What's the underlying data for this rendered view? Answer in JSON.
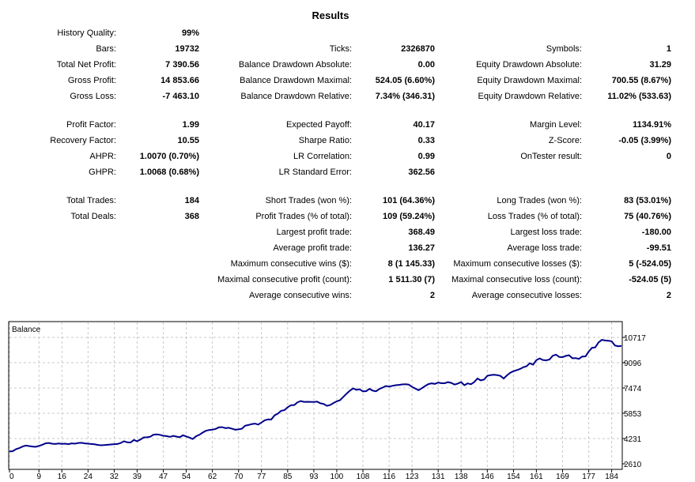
{
  "title": "Results",
  "history_quality": {
    "label": "History Quality:",
    "value": "99%"
  },
  "rows": [
    [
      {
        "label": "Bars:",
        "value": "19732"
      },
      {
        "label": "Ticks:",
        "value": "2326870"
      },
      {
        "label": "Symbols:",
        "value": "1"
      }
    ],
    [
      {
        "label": "Total Net Profit:",
        "value": "7 390.56"
      },
      {
        "label": "Balance Drawdown Absolute:",
        "value": "0.00"
      },
      {
        "label": "Equity Drawdown Absolute:",
        "value": "31.29"
      }
    ],
    [
      {
        "label": "Gross Profit:",
        "value": "14 853.66"
      },
      {
        "label": "Balance Drawdown Maximal:",
        "value": "524.05 (6.60%)"
      },
      {
        "label": "Equity Drawdown Maximal:",
        "value": "700.55 (8.67%)"
      }
    ],
    [
      {
        "label": "Gross Loss:",
        "value": "-7 463.10"
      },
      {
        "label": "Balance Drawdown Relative:",
        "value": "7.34% (346.31)"
      },
      {
        "label": "Equity Drawdown Relative:",
        "value": "11.02% (533.63)"
      }
    ],
    [
      {
        "label": "Profit Factor:",
        "value": "1.99"
      },
      {
        "label": "Expected Payoff:",
        "value": "40.17"
      },
      {
        "label": "Margin Level:",
        "value": "1134.91%"
      }
    ],
    [
      {
        "label": "Recovery Factor:",
        "value": "10.55"
      },
      {
        "label": "Sharpe Ratio:",
        "value": "0.33"
      },
      {
        "label": "Z-Score:",
        "value": "-0.05 (3.99%)"
      }
    ],
    [
      {
        "label": "AHPR:",
        "value": "1.0070 (0.70%)"
      },
      {
        "label": "LR Correlation:",
        "value": "0.99"
      },
      {
        "label": "OnTester result:",
        "value": "0"
      }
    ],
    [
      {
        "label": "GHPR:",
        "value": "1.0068 (0.68%)"
      },
      {
        "label": "LR Standard Error:",
        "value": "362.56"
      },
      {
        "label": "",
        "value": ""
      }
    ],
    [
      {
        "label": "Total Trades:",
        "value": "184"
      },
      {
        "label": "Short Trades (won %):",
        "value": "101 (64.36%)"
      },
      {
        "label": "Long Trades (won %):",
        "value": "83 (53.01%)"
      }
    ],
    [
      {
        "label": "Total Deals:",
        "value": "368"
      },
      {
        "label": "Profit Trades (% of total):",
        "value": "109 (59.24%)"
      },
      {
        "label": "Loss Trades (% of total):",
        "value": "75 (40.76%)"
      }
    ],
    [
      {
        "label": "",
        "value": ""
      },
      {
        "label": "Largest profit trade:",
        "value": "368.49"
      },
      {
        "label": "Largest loss trade:",
        "value": "-180.00"
      }
    ],
    [
      {
        "label": "",
        "value": ""
      },
      {
        "label": "Average profit trade:",
        "value": "136.27"
      },
      {
        "label": "Average loss trade:",
        "value": "-99.51"
      }
    ],
    [
      {
        "label": "",
        "value": ""
      },
      {
        "label": "Maximum consecutive wins ($):",
        "value": "8 (1 145.33)"
      },
      {
        "label": "Maximum consecutive losses ($):",
        "value": "5 (-524.05)"
      }
    ],
    [
      {
        "label": "",
        "value": ""
      },
      {
        "label": "Maximal consecutive profit (count):",
        "value": "1 511.30 (7)"
      },
      {
        "label": "Maximal consecutive loss (count):",
        "value": "-524.05 (5)"
      }
    ],
    [
      {
        "label": "",
        "value": ""
      },
      {
        "label": "Average consecutive wins:",
        "value": "2"
      },
      {
        "label": "Average consecutive losses:",
        "value": "2"
      }
    ]
  ],
  "chart_data": {
    "type": "line",
    "title": "Balance",
    "x_ticks": [
      "0",
      "9",
      "16",
      "24",
      "32",
      "39",
      "47",
      "54",
      "62",
      "70",
      "77",
      "85",
      "93",
      "100",
      "108",
      "116",
      "123",
      "131",
      "138",
      "146",
      "154",
      "161",
      "169",
      "177",
      "184"
    ],
    "y_ticks": [
      "10717",
      "9096",
      "7474",
      "5853",
      "4231",
      "2610"
    ],
    "ylim": [
      2610,
      10717
    ],
    "xlim": [
      0,
      187
    ],
    "grid": true,
    "line_color": "#00008b",
    "series": [
      {
        "x": [
          0,
          1,
          2,
          3,
          4,
          5,
          6,
          7,
          8,
          9,
          10,
          11,
          12,
          13,
          14,
          15,
          16,
          17,
          18,
          19,
          20,
          21,
          22,
          23,
          24,
          25,
          26,
          27,
          28,
          29,
          30,
          31,
          32,
          33,
          34,
          35,
          36,
          37,
          38,
          39,
          40,
          41,
          42,
          43,
          44,
          45,
          46,
          47,
          48,
          49,
          50,
          51,
          52,
          53,
          54,
          55,
          56,
          57,
          58,
          59,
          60,
          61,
          62,
          63,
          64,
          65,
          66,
          67,
          68,
          69,
          70,
          71,
          72,
          73,
          74,
          75,
          76,
          77,
          78,
          79,
          80,
          81,
          82,
          83,
          84,
          85,
          86,
          87,
          88,
          89,
          90,
          91,
          92,
          93,
          94,
          95,
          96,
          97,
          98,
          99,
          100,
          101,
          102,
          103,
          104,
          105,
          106,
          107,
          108,
          109,
          110,
          111,
          112,
          113,
          114,
          115,
          116,
          117,
          118,
          119,
          120,
          121,
          122,
          123,
          124,
          125,
          126,
          127,
          128,
          129,
          130,
          131,
          132,
          133,
          134,
          135,
          136,
          137,
          138,
          139,
          140,
          141,
          142,
          143,
          144,
          145,
          146,
          147,
          148,
          149,
          150,
          151,
          152,
          153,
          154,
          155,
          156,
          157,
          158,
          159,
          160,
          161,
          162,
          163,
          164,
          165,
          166,
          167,
          168,
          169,
          170,
          171,
          172,
          173,
          174,
          175,
          176,
          177,
          178,
          179,
          180,
          181,
          182,
          183,
          184,
          185,
          186,
          187
        ],
        "values": [
          3400,
          3420,
          3550,
          3620,
          3720,
          3780,
          3750,
          3720,
          3700,
          3760,
          3830,
          3920,
          3950,
          3900,
          3880,
          3910,
          3890,
          3900,
          3870,
          3920,
          3900,
          3950,
          3960,
          3920,
          3900,
          3880,
          3860,
          3820,
          3800,
          3810,
          3830,
          3850,
          3870,
          3880,
          3950,
          4060,
          3990,
          3980,
          4140,
          4060,
          4170,
          4300,
          4310,
          4350,
          4480,
          4500,
          4470,
          4410,
          4390,
          4340,
          4400,
          4360,
          4310,
          4440,
          4370,
          4290,
          4200,
          4380,
          4470,
          4610,
          4730,
          4780,
          4800,
          4850,
          4950,
          4960,
          4900,
          4920,
          4860,
          4800,
          4820,
          4860,
          5050,
          5100,
          5160,
          5190,
          5130,
          5260,
          5400,
          5460,
          5450,
          5720,
          5820,
          6010,
          6050,
          6240,
          6370,
          6380,
          6550,
          6640,
          6580,
          6590,
          6580,
          6570,
          6600,
          6490,
          6450,
          6330,
          6380,
          6510,
          6620,
          6690,
          6900,
          7110,
          7300,
          7450,
          7360,
          7390,
          7250,
          7270,
          7420,
          7300,
          7260,
          7410,
          7500,
          7600,
          7560,
          7610,
          7650,
          7670,
          7700,
          7710,
          7690,
          7540,
          7440,
          7330,
          7460,
          7600,
          7720,
          7770,
          7740,
          7820,
          7780,
          7780,
          7850,
          7800,
          7690,
          7760,
          7850,
          7650,
          7770,
          7710,
          7850,
          8080,
          7960,
          8010,
          8250,
          8300,
          8320,
          8300,
          8250,
          8080,
          8280,
          8450,
          8550,
          8620,
          8690,
          8800,
          8870,
          9060,
          8970,
          9260,
          9370,
          9270,
          9250,
          9300,
          9540,
          9610,
          9460,
          9450,
          9530,
          9570,
          9380,
          9390,
          9340,
          9490,
          9500,
          9810,
          10050,
          10080,
          10400,
          10560,
          10520,
          10500,
          10470,
          10200,
          10150,
          10170
        ]
      }
    ]
  }
}
